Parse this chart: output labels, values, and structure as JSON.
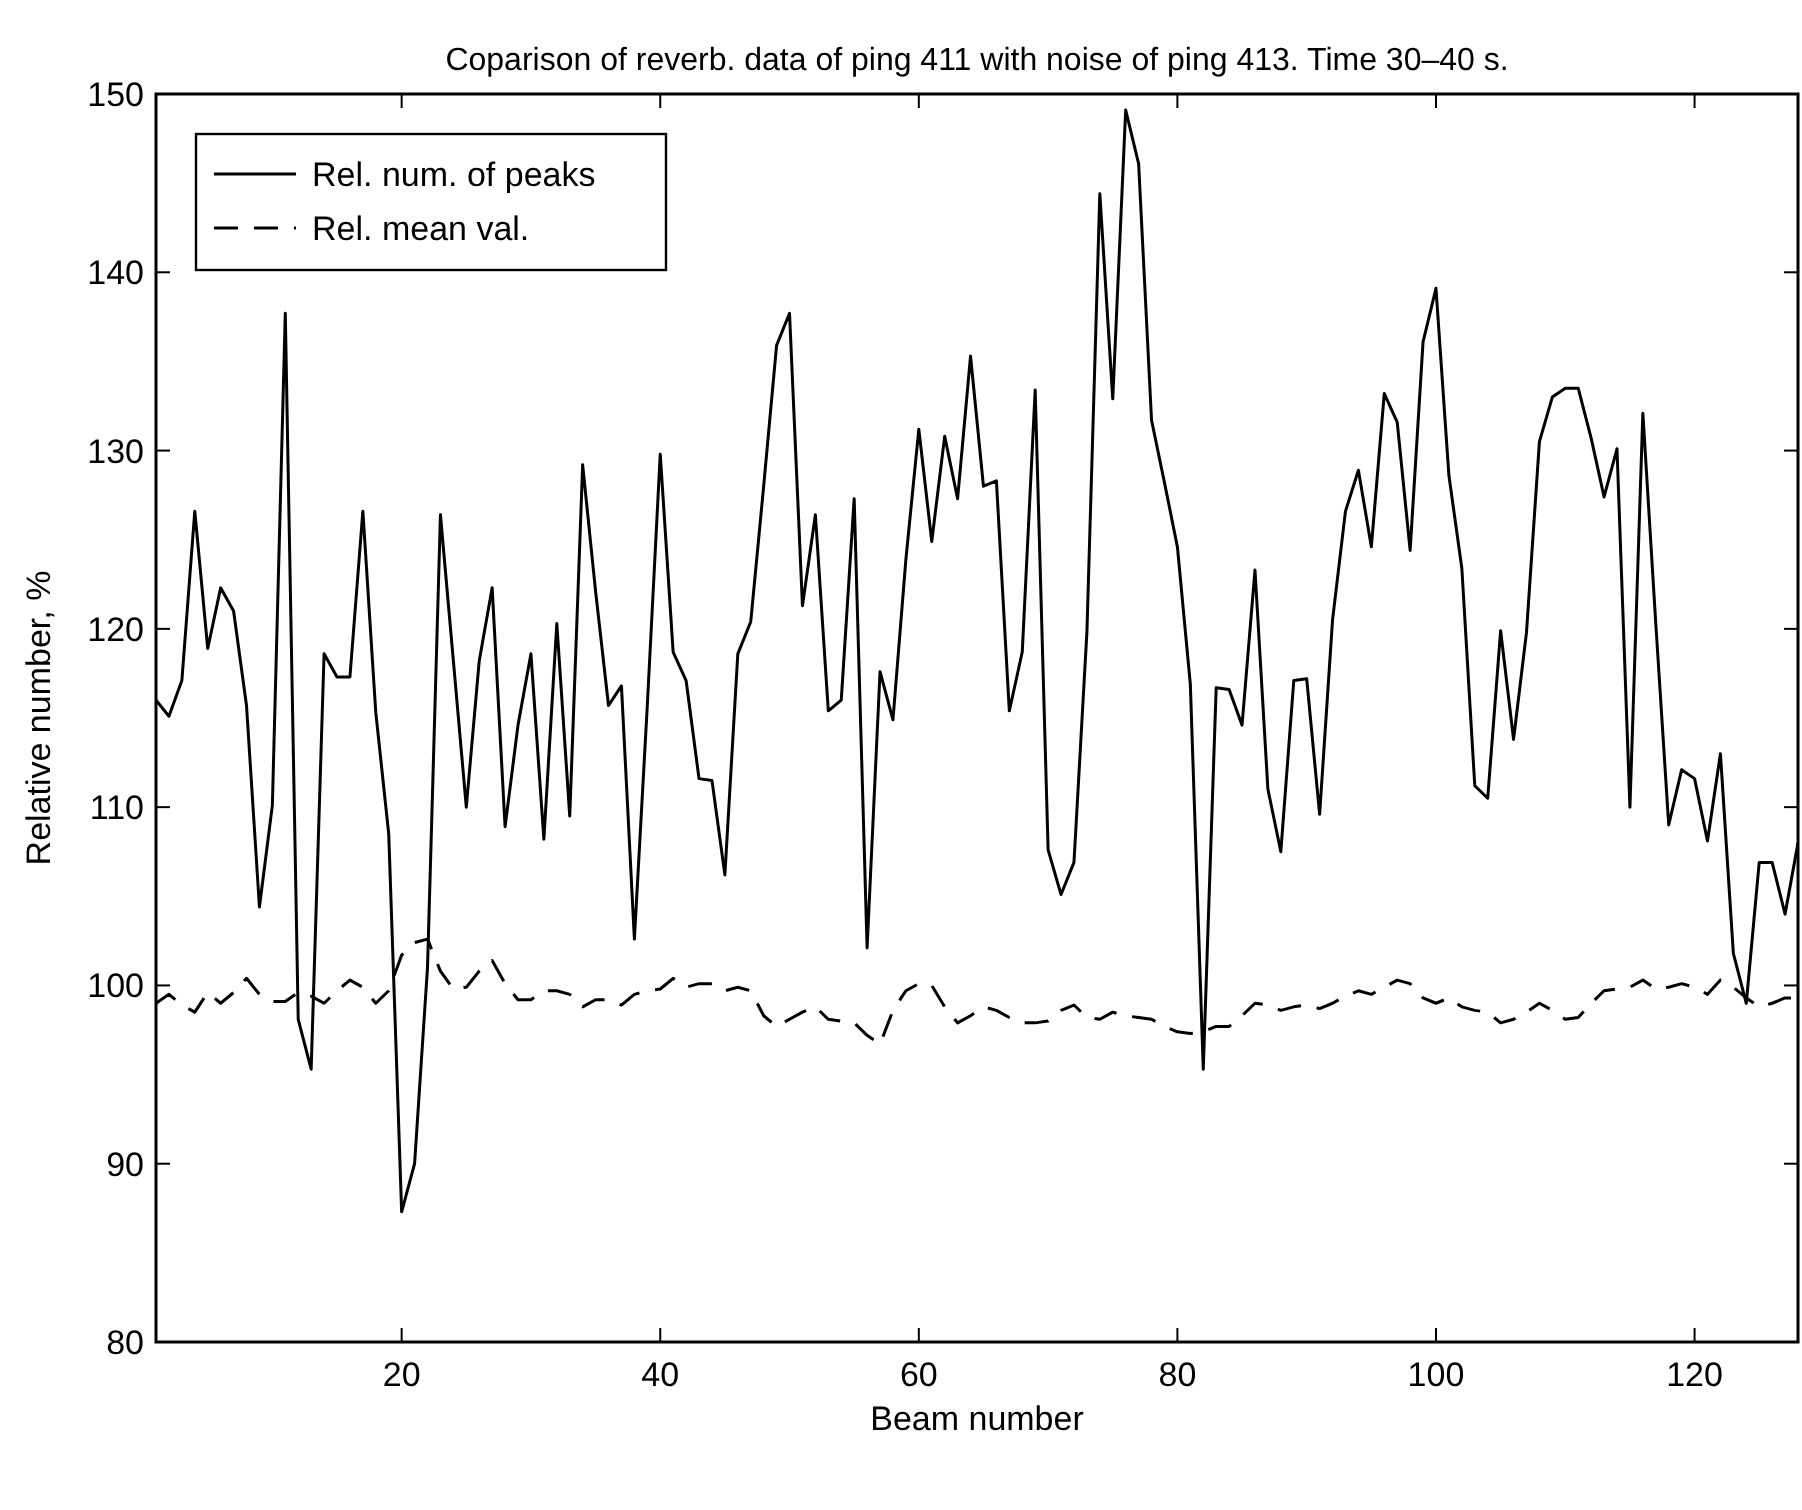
{
  "chart_data": {
    "type": "line",
    "title": "Coparison of reverb. data of ping 411 with noise of ping 413. Time 30–40 s.",
    "xlabel": "Beam number",
    "ylabel": "Relative number, %",
    "x": [
      1,
      2,
      3,
      4,
      5,
      6,
      7,
      8,
      9,
      10,
      11,
      12,
      13,
      14,
      15,
      16,
      17,
      18,
      19,
      20,
      21,
      22,
      23,
      24,
      25,
      26,
      27,
      28,
      29,
      30,
      31,
      32,
      33,
      34,
      35,
      36,
      37,
      38,
      39,
      40,
      41,
      42,
      43,
      44,
      45,
      46,
      47,
      48,
      49,
      50,
      51,
      52,
      53,
      54,
      55,
      56,
      57,
      58,
      59,
      60,
      61,
      62,
      63,
      64,
      65,
      66,
      67,
      68,
      69,
      70,
      71,
      72,
      73,
      74,
      75,
      76,
      77,
      78,
      79,
      80,
      81,
      82,
      83,
      84,
      85,
      86,
      87,
      88,
      89,
      90,
      91,
      92,
      93,
      94,
      95,
      96,
      97,
      98,
      99,
      100,
      101,
      102,
      103,
      104,
      105,
      106,
      107,
      108,
      109,
      110,
      111,
      112,
      113,
      114,
      115,
      116,
      117,
      118,
      119,
      120,
      121,
      122,
      123,
      124,
      125,
      126,
      127,
      128
    ],
    "series": [
      {
        "name": "Rel. num. of peaks",
        "color": "#000000",
        "line_style": "solid",
        "values": [
          116.0,
          115.1,
          117.1,
          126.6,
          118.9,
          122.3,
          121.0,
          115.7,
          104.4,
          110.1,
          137.7,
          98.1,
          95.3,
          118.6,
          117.3,
          117.3,
          126.6,
          115.3,
          108.5,
          87.3,
          90.0,
          101.0,
          126.4,
          118.2,
          110.0,
          118.2,
          122.3,
          108.9,
          114.6,
          118.6,
          108.2,
          120.3,
          109.5,
          129.2,
          122.1,
          115.7,
          116.8,
          102.6,
          115.7,
          129.8,
          118.7,
          117.1,
          111.6,
          111.5,
          106.2,
          118.6,
          120.4,
          128.0,
          135.9,
          137.7,
          121.3,
          126.4,
          115.4,
          116.0,
          127.3,
          102.1,
          117.6,
          114.9,
          123.9,
          131.2,
          124.9,
          130.8,
          127.3,
          135.3,
          128.0,
          128.3,
          115.4,
          118.7,
          133.4,
          107.6,
          105.1,
          106.9,
          119.8,
          144.4,
          132.9,
          149.1,
          146.1,
          131.7,
          128.2,
          124.6,
          116.9,
          95.3,
          116.7,
          116.6,
          114.6,
          123.3,
          111.0,
          107.5,
          117.1,
          117.2,
          109.6,
          120.5,
          126.6,
          128.9,
          124.6,
          133.2,
          131.6,
          124.4,
          136.1,
          139.1,
          128.6,
          123.4,
          111.2,
          110.5,
          119.9,
          113.8,
          119.8,
          130.5,
          133.0,
          133.5,
          133.5,
          130.7,
          127.4,
          130.1,
          110.0,
          132.1,
          120.3,
          109.0,
          112.1,
          111.6,
          108.1,
          113.0,
          101.8,
          99.0,
          106.9,
          106.9,
          104.0,
          108.0
        ]
      },
      {
        "name": "Rel. mean val.",
        "color": "#000000",
        "line_style": "dashed",
        "values": [
          99.0,
          99.5,
          98.9,
          98.5,
          99.6,
          99.0,
          99.6,
          100.4,
          99.5,
          99.1,
          99.1,
          99.6,
          99.4,
          99.0,
          99.7,
          100.3,
          99.9,
          99.0,
          99.7,
          101.7,
          102.4,
          102.6,
          100.8,
          99.8,
          99.9,
          100.8,
          101.4,
          100.1,
          99.2,
          99.2,
          99.7,
          99.7,
          99.5,
          98.8,
          99.2,
          99.2,
          98.9,
          99.5,
          99.7,
          99.8,
          100.4,
          99.9,
          100.1,
          100.1,
          99.7,
          99.9,
          99.7,
          98.3,
          97.7,
          98.1,
          98.5,
          98.8,
          98.1,
          98.0,
          97.9,
          97.2,
          96.7,
          98.6,
          99.7,
          100.1,
          100.0,
          98.8,
          97.9,
          98.3,
          98.8,
          98.6,
          98.2,
          97.9,
          97.9,
          98.0,
          98.6,
          98.9,
          98.2,
          98.1,
          98.5,
          98.3,
          98.2,
          98.1,
          97.7,
          97.4,
          97.3,
          97.4,
          97.7,
          97.7,
          98.3,
          99.0,
          98.9,
          98.6,
          98.8,
          98.9,
          98.7,
          99.0,
          99.4,
          99.7,
          99.5,
          99.9,
          100.3,
          100.1,
          99.3,
          99.0,
          99.3,
          98.8,
          98.6,
          98.5,
          97.9,
          98.1,
          98.5,
          99.0,
          98.6,
          98.1,
          98.2,
          99.0,
          99.7,
          99.8,
          99.9,
          100.3,
          99.8,
          99.9,
          100.1,
          99.9,
          99.5,
          100.3,
          99.9,
          99.3,
          98.8,
          99.0,
          99.3,
          99.3
        ]
      }
    ],
    "xlim": [
      1,
      128
    ],
    "xticks": [
      20,
      40,
      60,
      80,
      100,
      120
    ],
    "ylim": [
      80,
      150
    ],
    "yticks": [
      80,
      90,
      100,
      110,
      120,
      130,
      140,
      150
    ],
    "grid": false,
    "legend": "top left",
    "marker": "none"
  }
}
